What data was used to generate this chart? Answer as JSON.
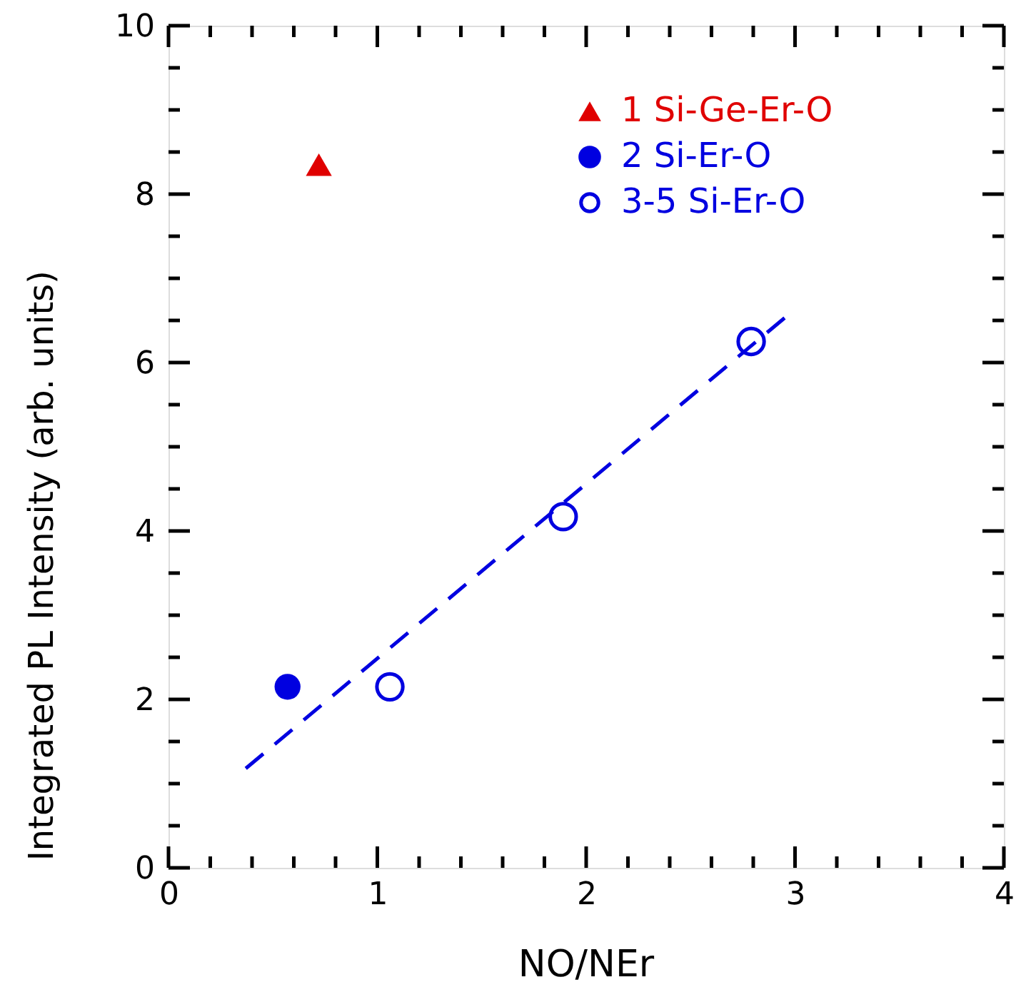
{
  "chart_data": {
    "type": "scatter",
    "xlabel": "NO/NEr",
    "ylabel": "Integrated  PL  Intensity  (arb. units)",
    "xlim": [
      0,
      4
    ],
    "ylim": [
      0,
      10
    ],
    "xticks": [
      0,
      {
        "value": 0.2,
        "label": null
      },
      {
        "value": 0.4,
        "label": null
      },
      {
        "value": 0.6,
        "label": null
      },
      {
        "value": 0.8,
        "label": null
      },
      1,
      {
        "value": 1.2,
        "label": null
      },
      {
        "value": 1.4,
        "label": null
      },
      {
        "value": 1.6,
        "label": null
      },
      {
        "value": 1.8,
        "label": null
      },
      2,
      {
        "value": 2.2,
        "label": null
      },
      {
        "value": 2.4,
        "label": null
      },
      {
        "value": 2.6,
        "label": null
      },
      {
        "value": 2.8,
        "label": null
      },
      3,
      {
        "value": 3.2,
        "label": null
      },
      {
        "value": 3.4,
        "label": null
      },
      {
        "value": 3.6,
        "label": null
      },
      {
        "value": 3.8,
        "label": null
      },
      4
    ],
    "yticks": [
      0,
      {
        "value": 0.5,
        "label": null
      },
      {
        "value": 1,
        "label": null
      },
      {
        "value": 1.5,
        "label": null
      },
      2,
      {
        "value": 2.5,
        "label": null
      },
      {
        "value": 3,
        "label": null
      },
      {
        "value": 3.5,
        "label": null
      },
      4,
      {
        "value": 4.5,
        "label": null
      },
      {
        "value": 5,
        "label": null
      },
      {
        "value": 5.5,
        "label": null
      },
      6,
      {
        "value": 6.5,
        "label": null
      },
      {
        "value": 7,
        "label": null
      },
      {
        "value": 7.5,
        "label": null
      },
      8,
      {
        "value": 8.5,
        "label": null
      },
      {
        "value": 9,
        "label": null
      },
      {
        "value": 9.5,
        "label": null
      },
      10
    ],
    "grid": false,
    "legend": "top right",
    "series": [
      {
        "name": "1 Si-Ge-Er-O",
        "color": "#e00000",
        "marker": "triangle",
        "x": [
          0.72
        ],
        "values": [
          8.35
        ]
      },
      {
        "name": "2 Si-Er-O",
        "color": "#0000e0",
        "marker": "circle",
        "x": [
          0.57
        ],
        "values": [
          2.15
        ]
      },
      {
        "name": "3-5 Si-Er-O",
        "color": "#0000e0",
        "marker": "open_circle",
        "x": [
          1.06,
          1.89,
          2.79
        ],
        "values": [
          2.15,
          4.17,
          6.25
        ]
      },
      {
        "type": "line",
        "color": "#0000e0",
        "line_style": "dashed",
        "marker": "none",
        "x": [
          0.37,
          2.95
        ],
        "values": [
          1.18,
          6.53
        ]
      }
    ]
  }
}
